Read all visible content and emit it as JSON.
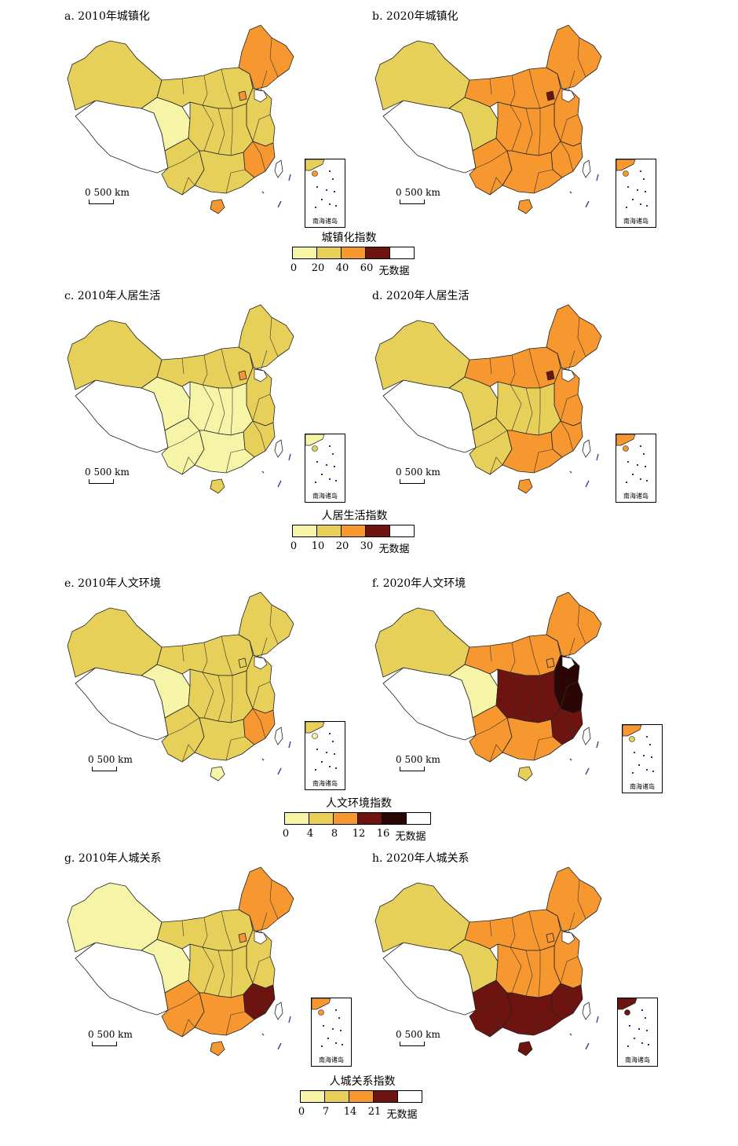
{
  "colors": {
    "c1": "#f6f4a6",
    "c2": "#e6d05a",
    "c3": "#f7972f",
    "c4": "#6e1410",
    "c5": "#2a0604",
    "nodata": "#ffffff"
  },
  "common": {
    "scale_label": "0    500 km",
    "inset_label": "南海诸岛"
  },
  "panels": [
    {
      "id": "a",
      "title": "a. 2010年城镇化",
      "fills": {
        "north": "c2",
        "northeast": "c3",
        "east": "c2",
        "central": "c2",
        "south": "c2",
        "southeast": "c3",
        "qinghai": "c1",
        "sw": "c2",
        "xinjiang": "c2",
        "tibet": "nodata",
        "hainan": "c3",
        "beijing": "c3"
      }
    },
    {
      "id": "b",
      "title": "b. 2020年城镇化",
      "fills": {
        "north": "c3",
        "northeast": "c3",
        "east": "c3",
        "central": "c3",
        "south": "c3",
        "southeast": "c3",
        "qinghai": "c2",
        "sw": "c3",
        "xinjiang": "c2",
        "tibet": "nodata",
        "hainan": "c3",
        "beijing": "c4"
      }
    },
    {
      "id": "c",
      "title": "c. 2010年人居生活",
      "fills": {
        "north": "c2",
        "northeast": "c2",
        "east": "c2",
        "central": "c1",
        "south": "c1",
        "southeast": "c2",
        "qinghai": "c1",
        "sw": "c1",
        "xinjiang": "c2",
        "tibet": "nodata",
        "hainan": "c2",
        "beijing": "c3"
      }
    },
    {
      "id": "d",
      "title": "d. 2020年人居生活",
      "fills": {
        "north": "c3",
        "northeast": "c3",
        "east": "c3",
        "central": "c2",
        "south": "c3",
        "southeast": "c3",
        "qinghai": "c2",
        "sw": "c2",
        "xinjiang": "c2",
        "tibet": "nodata",
        "hainan": "c3",
        "beijing": "c4"
      }
    },
    {
      "id": "e",
      "title": "e. 2010年人文环境",
      "fills": {
        "north": "c2",
        "northeast": "c2",
        "east": "c2",
        "central": "c2",
        "south": "c2",
        "southeast": "c3",
        "qinghai": "c1",
        "sw": "c2",
        "xinjiang": "c2",
        "tibet": "nodata",
        "hainan": "c1",
        "beijing": "c2"
      }
    },
    {
      "id": "f",
      "title": "f. 2020年人文环境",
      "fills": {
        "north": "c3",
        "northeast": "c3",
        "east": "c5",
        "central": "c4",
        "south": "c3",
        "southeast": "c4",
        "qinghai": "c1",
        "sw": "c3",
        "xinjiang": "c2",
        "tibet": "nodata",
        "hainan": "c2",
        "beijing": "c3"
      }
    },
    {
      "id": "g",
      "title": "g. 2010年人城关系",
      "fills": {
        "north": "c2",
        "northeast": "c3",
        "east": "c2",
        "central": "c2",
        "south": "c3",
        "southeast": "c4",
        "qinghai": "c1",
        "sw": "c3",
        "xinjiang": "c1",
        "tibet": "nodata",
        "hainan": "c3",
        "beijing": "c3"
      }
    },
    {
      "id": "h",
      "title": "h. 2020年人城关系",
      "fills": {
        "north": "c3",
        "northeast": "c3",
        "east": "c3",
        "central": "c3",
        "south": "c4",
        "southeast": "c4",
        "qinghai": "c2",
        "sw": "c4",
        "xinjiang": "c2",
        "tibet": "nodata",
        "hainan": "c4",
        "beijing": "c3"
      }
    }
  ],
  "legends": [
    {
      "id": "urban",
      "title": "城镇化指数",
      "swatches": [
        "c1",
        "c2",
        "c3",
        "c4",
        "nodata"
      ],
      "ticks": [
        "0",
        "20",
        "40",
        "60"
      ],
      "nodata_label": "无数据"
    },
    {
      "id": "living",
      "title": "人居生活指数",
      "swatches": [
        "c1",
        "c2",
        "c3",
        "c4",
        "nodata"
      ],
      "ticks": [
        "0",
        "10",
        "20",
        "30"
      ],
      "nodata_label": "无数据"
    },
    {
      "id": "culture",
      "title": "人文环境指数",
      "swatches": [
        "c1",
        "c2",
        "c3",
        "c4",
        "c5",
        "nodata"
      ],
      "ticks": [
        "0",
        "4",
        "8",
        "12",
        "16"
      ],
      "nodata_label": "无数据"
    },
    {
      "id": "relation",
      "title": "人城关系指数",
      "swatches": [
        "c1",
        "c2",
        "c3",
        "c4",
        "nodata"
      ],
      "ticks": [
        "0",
        "7",
        "14",
        "21"
      ],
      "nodata_label": "无数据"
    }
  ]
}
